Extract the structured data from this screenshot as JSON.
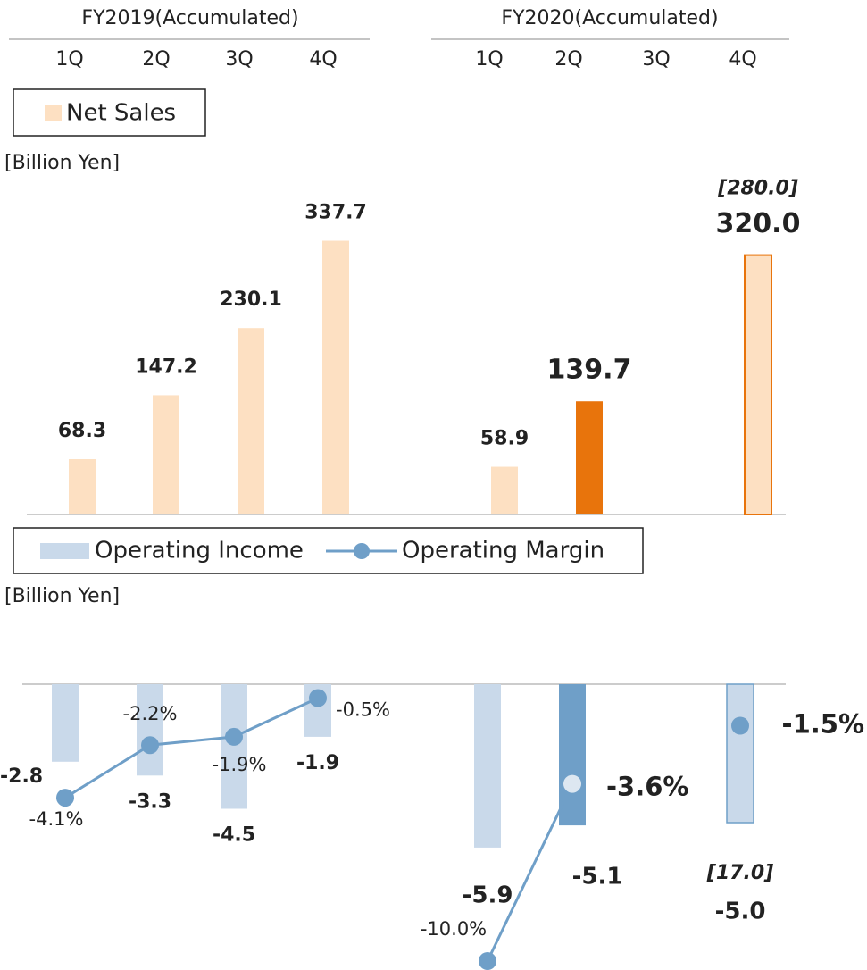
{
  "header": {
    "groups": [
      {
        "title": "FY2019(Accumulated)",
        "quarters": [
          "1Q",
          "2Q",
          "3Q",
          "4Q"
        ]
      },
      {
        "title": "FY2020(Accumulated)",
        "quarters": [
          "1Q",
          "2Q",
          "3Q",
          "4Q"
        ]
      }
    ]
  },
  "chart_data": [
    {
      "type": "bar",
      "unit": "[Billion Yen]",
      "ylim": [
        0,
        400
      ],
      "series": [
        {
          "name": "Net Sales",
          "color": "#fde0c2",
          "values": [
            68.3,
            147.2,
            230.1,
            337.7,
            58.9,
            139.7,
            null,
            320.0
          ],
          "value_labels": [
            "68.3",
            "147.2",
            "230.1",
            "337.7",
            "58.9",
            "139.7",
            null,
            "320.0"
          ],
          "forecast_labels": [
            null,
            null,
            null,
            null,
            null,
            null,
            null,
            "[280.0]"
          ],
          "colors": [
            "#fde0c2",
            "#fde0c2",
            "#fde0c2",
            "#fde0c2",
            "#fde0c2",
            "#e8740c",
            null,
            "#fde0c2"
          ],
          "edgecolors": [
            null,
            null,
            null,
            null,
            null,
            null,
            null,
            "#e8740c"
          ],
          "label_color": "#e8740c"
        }
      ]
    },
    {
      "type": "bar_line",
      "unit": "[Billion Yen]",
      "ylim": [
        -10,
        0
      ],
      "y2lim": [
        -10,
        0
      ],
      "series": [
        {
          "name": "Operating Income",
          "type": "bar",
          "color": "#c9d9ea",
          "values": [
            -2.8,
            -3.3,
            -4.5,
            -1.9,
            -5.9,
            -5.1,
            null,
            -5.0
          ],
          "value_labels": [
            "-2.8",
            "-3.3",
            "-4.5",
            "-1.9",
            "-5.9",
            "-5.1",
            null,
            "-5.0"
          ],
          "forecast_labels": [
            null,
            null,
            null,
            null,
            null,
            null,
            null,
            "[17.0]"
          ],
          "colors": [
            "#c9d9ea",
            "#c9d9ea",
            "#c9d9ea",
            "#c9d9ea",
            "#c9d9ea",
            "#6f9fc8",
            null,
            "#c9d9ea"
          ],
          "edgecolors": [
            null,
            null,
            null,
            null,
            null,
            null,
            null,
            "#6f9fc8"
          ],
          "label_color": "#6f9fc8"
        },
        {
          "name": "Operating Margin",
          "type": "line",
          "axis": "y2",
          "color": "#6f9fc8",
          "values": [
            -4.1,
            -2.2,
            -1.9,
            -0.5,
            -10.0,
            -3.6,
            null,
            -1.5
          ],
          "value_labels": [
            "-4.1%",
            "-2.2%",
            "-1.9%",
            "-0.5%",
            "-10.0%",
            "-3.6%",
            null,
            "-1.5%"
          ],
          "marker_colors": [
            "#6f9fc8",
            "#6f9fc8",
            "#6f9fc8",
            "#6f9fc8",
            "#6f9fc8",
            "#dde7f1",
            null,
            "#6f9fc8"
          ],
          "label_color": "#444444"
        }
      ]
    }
  ]
}
